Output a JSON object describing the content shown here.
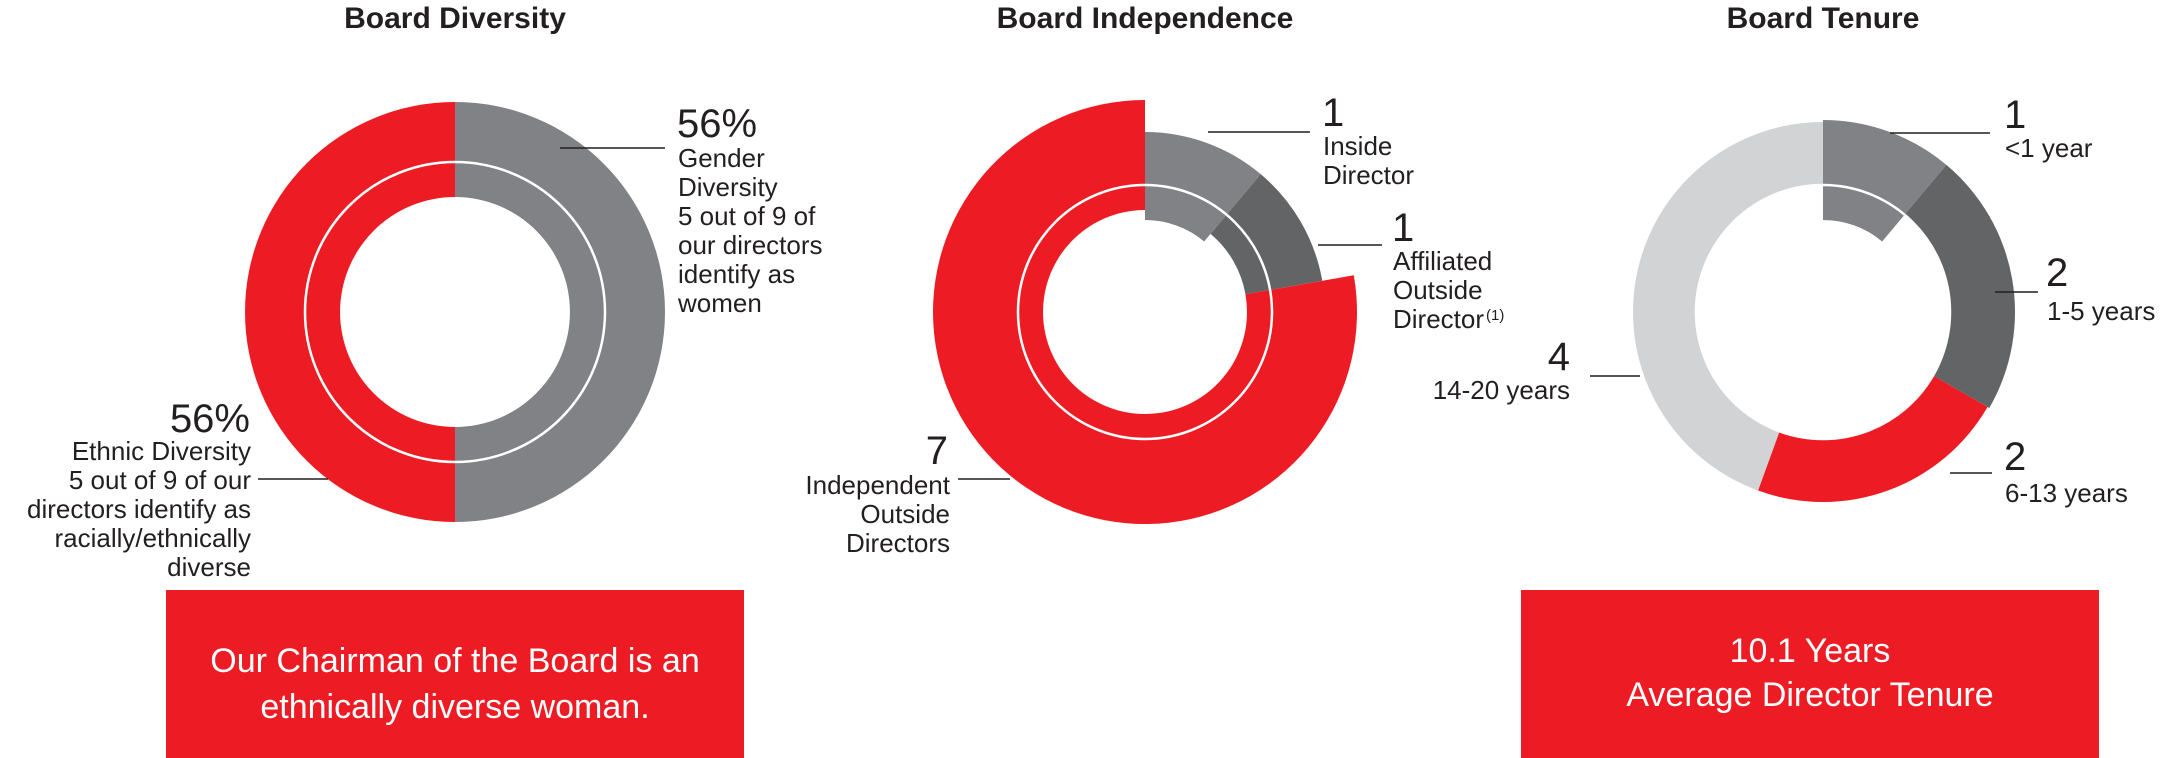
{
  "colors": {
    "red": "#ed1c24",
    "gray": "#808285",
    "dark_gray": "#636466",
    "light_gray": "#d1d3d4",
    "text": "#231f20"
  },
  "chart_data": [
    {
      "type": "pie",
      "title": "Board Diversity",
      "total": 9,
      "rings": [
        {
          "name": "Gender Diversity",
          "slices": [
            {
              "label": "56%",
              "value": 5,
              "color": "#808285"
            },
            {
              "value": 4,
              "color": "#ed1c24"
            }
          ]
        },
        {
          "name": "Ethnic Diversity",
          "slices": [
            {
              "label": "56%",
              "value": 5,
              "color": "#ed1c24"
            },
            {
              "value": 4,
              "color": "#808285"
            }
          ]
        }
      ],
      "annotations": [
        {
          "big": "56%",
          "lines": [
            "Gender",
            "Diversity",
            "5 out of 9 of",
            "our directors",
            "identify as",
            "women"
          ]
        },
        {
          "big": "56%",
          "lines": [
            "Ethnic Diversity",
            "5 out of 9 of our",
            "directors identify as",
            "racially/ethnically",
            "diverse"
          ]
        }
      ],
      "callout": [
        "Our Chairman of the Board is an",
        "ethnically diverse woman."
      ]
    },
    {
      "type": "pie",
      "title": "Board Independence",
      "slices": [
        {
          "category": "Inside Director",
          "value": 1,
          "color": "#808285"
        },
        {
          "category": "Affiliated Outside Director",
          "value": 1,
          "color": "#636466"
        },
        {
          "category": "Independent Outside Directors",
          "value": 7,
          "color": "#ed1c24"
        }
      ],
      "annotations": [
        {
          "big": "1",
          "lines": [
            "Inside",
            "Director"
          ]
        },
        {
          "big": "1",
          "lines": [
            "Affiliated",
            "Outside",
            "Director"
          ],
          "footnote": "(1)"
        },
        {
          "big": "7",
          "lines": [
            "Independent",
            "Outside",
            "Directors"
          ]
        }
      ]
    },
    {
      "type": "pie",
      "title": "Board Tenure",
      "slices": [
        {
          "category": "<1 year",
          "value": 1,
          "color": "#808285"
        },
        {
          "category": "1-5 years",
          "value": 2,
          "color": "#636466"
        },
        {
          "category": "6-13 years",
          "value": 2,
          "color": "#ed1c24"
        },
        {
          "category": "14-20 years",
          "value": 4,
          "color": "#d1d3d4"
        }
      ],
      "annotations": [
        {
          "big": "1",
          "lines": [
            "<1 year"
          ]
        },
        {
          "big": "2",
          "lines": [
            "1-5 years"
          ]
        },
        {
          "big": "2",
          "lines": [
            "6-13 years"
          ]
        },
        {
          "big": "4",
          "lines": [
            "14-20 years"
          ]
        }
      ],
      "callout": [
        "10.1 Years",
        "Average Director Tenure"
      ]
    }
  ]
}
